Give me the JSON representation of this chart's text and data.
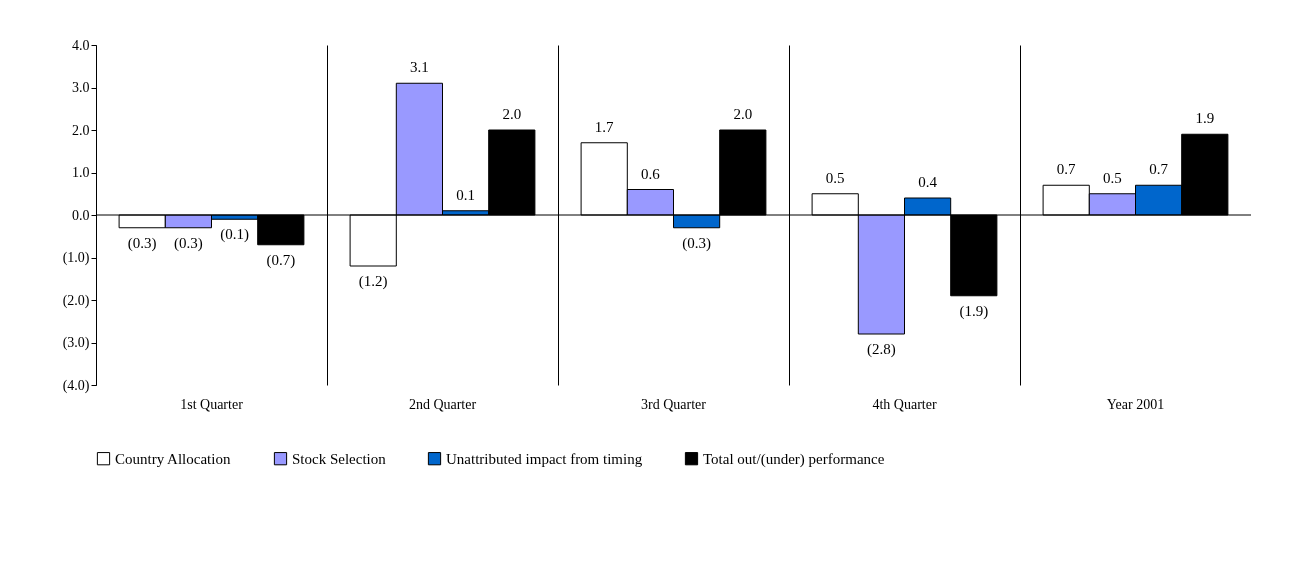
{
  "chart_data": {
    "type": "bar",
    "categories": [
      "1st Quarter",
      "2nd Quarter",
      "3rd Quarter",
      "4th Quarter",
      "Year 2001"
    ],
    "series": [
      {
        "name": "Country Allocation",
        "color": "#ffffff",
        "values": [
          -0.3,
          -1.2,
          1.7,
          0.5,
          0.7
        ],
        "value_labels": [
          "(0.3)",
          "(1.2)",
          "1.7",
          "0.5",
          "0.7"
        ]
      },
      {
        "name": "Stock Selection",
        "color": "#9999ff",
        "values": [
          -0.3,
          3.1,
          0.6,
          -2.8,
          0.5
        ],
        "value_labels": [
          "(0.3)",
          "3.1",
          "0.6",
          "(2.8)",
          "0.5"
        ]
      },
      {
        "name": "Unattributed impact from timing",
        "color": "#0066cc",
        "values": [
          -0.1,
          0.1,
          -0.3,
          0.4,
          0.7
        ],
        "value_labels": [
          "(0.1)",
          "0.1",
          "(0.3)",
          "0.4",
          "0.7"
        ]
      },
      {
        "name": "Total out/(under) performance",
        "color": "#000000",
        "values": [
          -0.7,
          2.0,
          2.0,
          -1.9,
          1.9
        ],
        "value_labels": [
          "(0.7)",
          "2.0",
          "2.0",
          "(1.9)",
          "1.9"
        ]
      }
    ],
    "ylim": [
      -4,
      4
    ],
    "yticks": [
      {
        "value": 4,
        "label": "4.0"
      },
      {
        "value": 3,
        "label": "3.0"
      },
      {
        "value": 2,
        "label": "2.0"
      },
      {
        "value": 1,
        "label": "1.0"
      },
      {
        "value": 0,
        "label": "0.0"
      },
      {
        "value": -1,
        "label": "(1.0)"
      },
      {
        "value": -2,
        "label": "(2.0)"
      },
      {
        "value": -3,
        "label": "(3.0)"
      },
      {
        "value": -4,
        "label": "(4.0)"
      }
    ],
    "ref_lines": [
      {
        "axis": "y",
        "value": 0,
        "color": "#000000"
      }
    ],
    "grid": "x",
    "legend": "bottom"
  }
}
